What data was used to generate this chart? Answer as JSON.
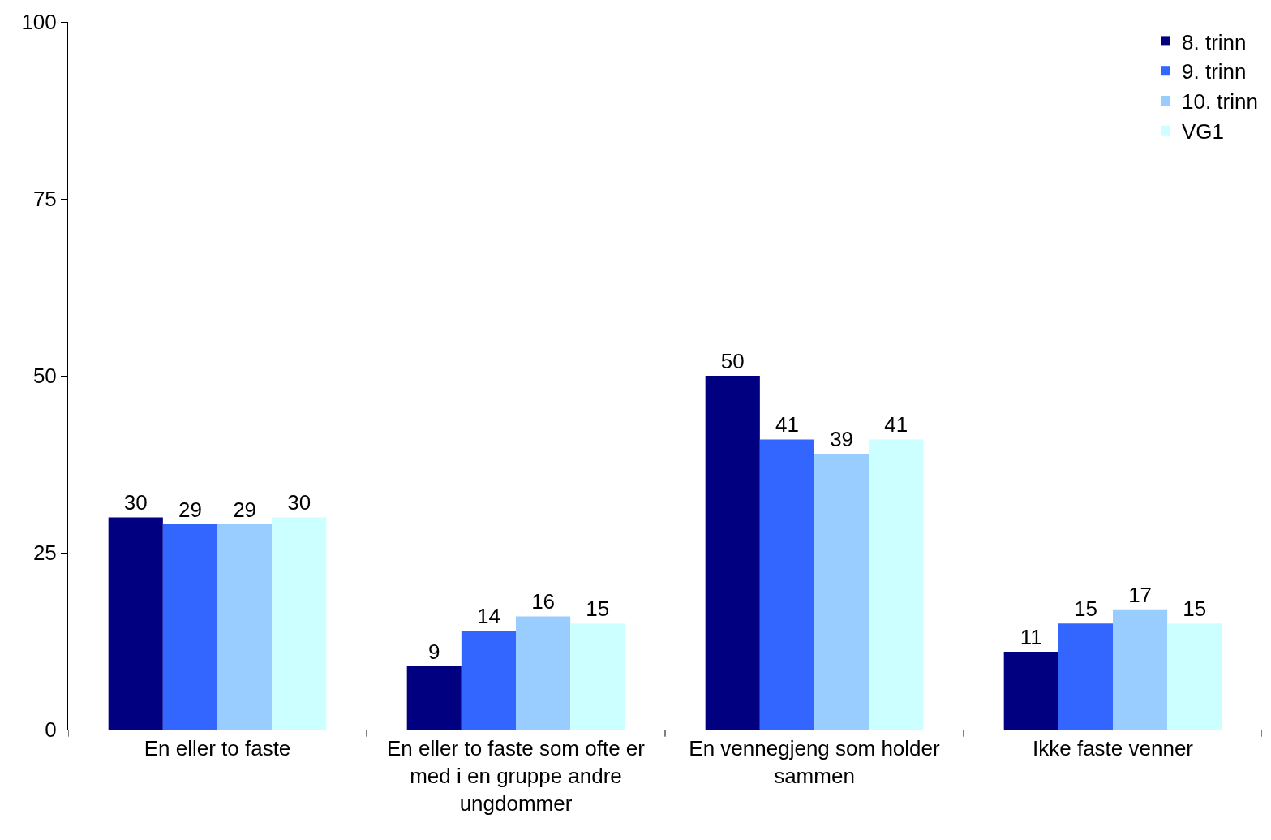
{
  "chart_data": {
    "type": "bar",
    "categories": [
      "En eller to faste",
      "En eller to faste som ofte er med i en gruppe andre ungdommer",
      "En vennegjeng som holder sammen",
      "Ikke faste venner"
    ],
    "series": [
      {
        "name": "8. trinn",
        "color": "#000080",
        "values": [
          30,
          9,
          50,
          11
        ]
      },
      {
        "name": "9. trinn",
        "color": "#3366ff",
        "values": [
          29,
          14,
          41,
          15
        ]
      },
      {
        "name": "10. trinn",
        "color": "#99ccff",
        "values": [
          29,
          16,
          39,
          17
        ]
      },
      {
        "name": "VG1",
        "color": "#ccffff",
        "values": [
          30,
          15,
          41,
          15
        ]
      }
    ],
    "ylim": [
      0,
      100
    ],
    "yticks": [
      0,
      25,
      50,
      75,
      100
    ],
    "grid": false,
    "legend": "top right",
    "data_labels": true
  }
}
